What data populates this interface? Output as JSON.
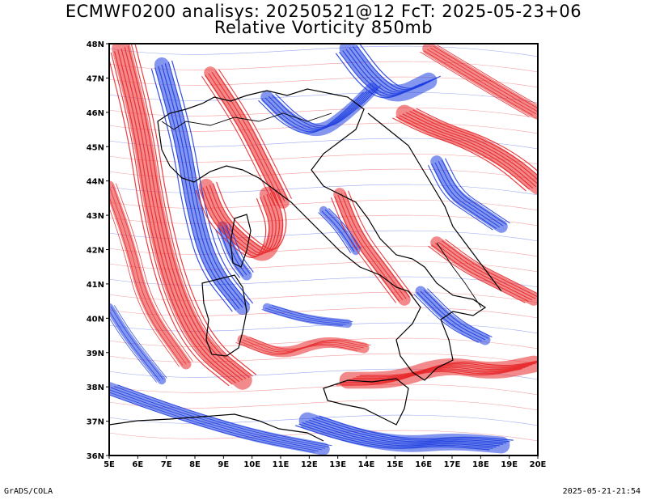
{
  "title": {
    "line1": "ECMWF0200 analisys: 20250521@12 FcT: 2025-05-23+06",
    "line2": "Relative Vorticity 850mb"
  },
  "map": {
    "lon_range": [
      5,
      20
    ],
    "lat_range": [
      36,
      48
    ],
    "lon_ticks": [
      "5E",
      "6E",
      "7E",
      "8E",
      "9E",
      "10E",
      "11E",
      "12E",
      "13E",
      "14E",
      "15E",
      "16E",
      "17E",
      "18E",
      "19E",
      "20E"
    ],
    "lat_ticks": [
      "36N",
      "37N",
      "38N",
      "39N",
      "40N",
      "41N",
      "42N",
      "43N",
      "44N",
      "45N",
      "46N",
      "47N",
      "48N"
    ],
    "colors": {
      "positive": "#e8292b",
      "negative": "#1f3fe0",
      "coast": "#000000"
    }
  },
  "footer": {
    "credit": "GrADS/COLA",
    "timestamp": "2025-05-21-21:54"
  }
}
